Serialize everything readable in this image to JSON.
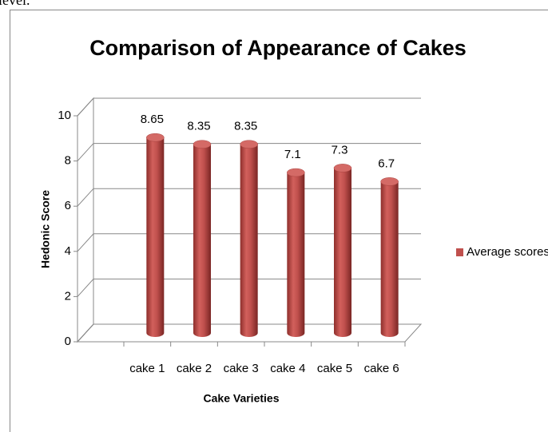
{
  "page_fragment": "level.",
  "chart_data": {
    "type": "bar",
    "title": "Comparison of Appearance of Cakes",
    "x_label": "Cake Varieties",
    "y_label": "Hedonic Score",
    "categories": [
      "cake 1",
      "cake 2",
      "cake 3",
      "cake 4",
      "cake 5",
      "cake 6"
    ],
    "series": [
      {
        "name": "Average scores",
        "color": "#c0504d",
        "values": [
          8.65,
          8.35,
          8.35,
          7.1,
          7.3,
          6.7
        ]
      }
    ],
    "ylim": [
      0,
      10
    ],
    "yticks": [
      0,
      2,
      4,
      6,
      8,
      10
    ],
    "grid": true,
    "legend": "right"
  }
}
